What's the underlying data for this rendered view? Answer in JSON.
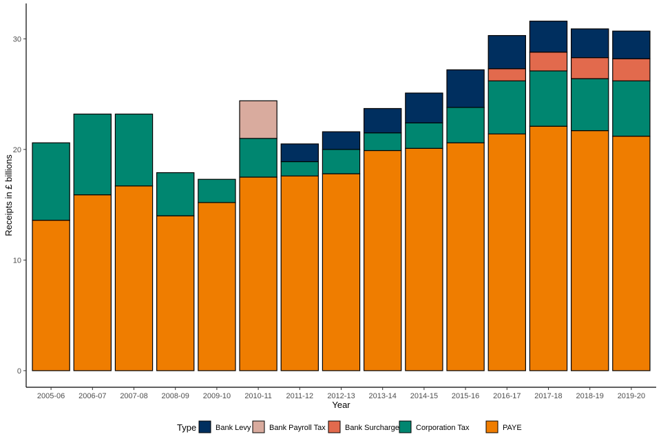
{
  "chart_data": {
    "type": "bar",
    "stacked": true,
    "title": "",
    "xlabel": "Year",
    "ylabel": "Receipts in £ billions",
    "ylim": [
      -1.5,
      33.2
    ],
    "yticks": [
      0,
      10,
      20,
      30
    ],
    "grid": false,
    "legend": {
      "title": "Type",
      "position": "bottom"
    },
    "categories": [
      "2005-06",
      "2006-07",
      "2007-08",
      "2008-09",
      "2009-10",
      "2010-11",
      "2011-12",
      "2012-13",
      "2013-14",
      "2014-15",
      "2015-16",
      "2016-17",
      "2017-18",
      "2018-19",
      "2019-20"
    ],
    "series": [
      {
        "name": "PAYE",
        "color": "#EF7D00",
        "values": [
          13.6,
          15.9,
          16.7,
          14.0,
          15.2,
          17.5,
          17.6,
          17.8,
          19.9,
          20.1,
          20.6,
          21.4,
          22.1,
          21.7,
          21.2
        ]
      },
      {
        "name": "Corporation Tax",
        "color": "#008670",
        "values": [
          7.0,
          7.3,
          6.5,
          3.9,
          2.1,
          3.5,
          1.3,
          2.2,
          1.6,
          2.3,
          3.2,
          4.8,
          5.0,
          4.7,
          5.0
        ]
      },
      {
        "name": "Bank Surcharge",
        "color": "#E26A4D",
        "values": [
          0,
          0,
          0,
          0,
          0,
          0,
          0,
          0,
          0,
          0,
          0,
          1.1,
          1.7,
          1.9,
          2.0
        ]
      },
      {
        "name": "Bank Payroll Tax",
        "color": "#D9AB9E",
        "values": [
          0,
          0,
          0,
          0,
          0,
          3.4,
          0,
          0,
          0,
          0,
          0,
          0,
          0,
          0,
          0
        ]
      },
      {
        "name": "Bank Levy",
        "color": "#002F5F",
        "values": [
          0,
          0,
          0,
          0,
          0,
          0,
          1.6,
          1.6,
          2.2,
          2.7,
          3.4,
          3.0,
          2.8,
          2.6,
          2.5
        ]
      }
    ],
    "legend_order": [
      "Bank Levy",
      "Bank Payroll Tax",
      "Bank Surcharge",
      "Corporation Tax",
      "PAYE"
    ]
  }
}
